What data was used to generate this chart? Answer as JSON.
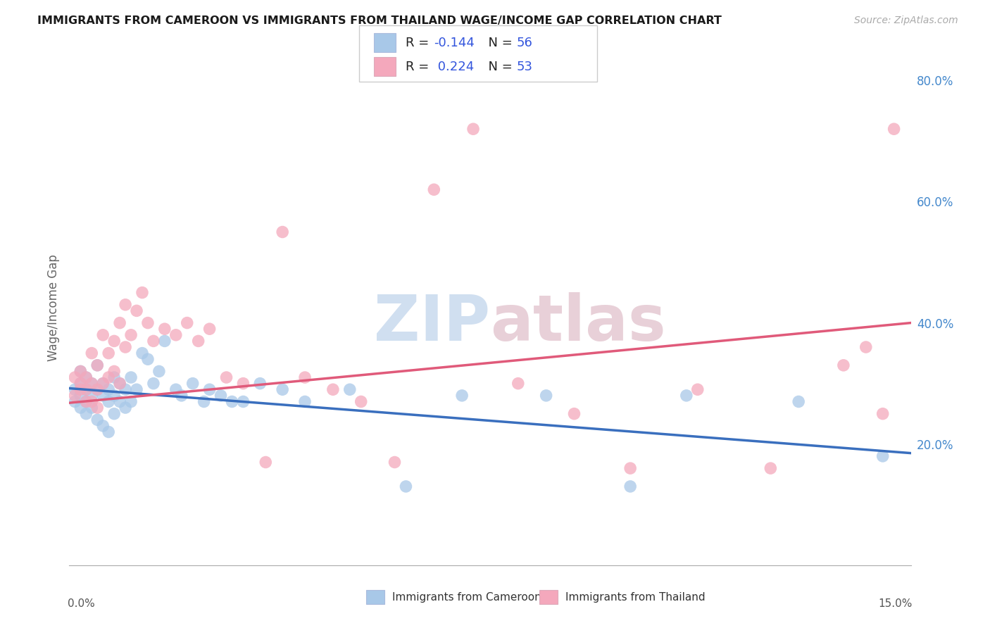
{
  "title": "IMMIGRANTS FROM CAMEROON VS IMMIGRANTS FROM THAILAND WAGE/INCOME GAP CORRELATION CHART",
  "source": "Source: ZipAtlas.com",
  "ylabel": "Wage/Income Gap",
  "cameroon_color": "#a8c8e8",
  "thailand_color": "#f4a8bc",
  "cameroon_line_color": "#3a6fbe",
  "thailand_line_color": "#e05a7a",
  "xlim": [
    0.0,
    0.15
  ],
  "ylim": [
    0.0,
    0.85
  ],
  "right_yticks": [
    0.2,
    0.4,
    0.6,
    0.8
  ],
  "right_yticklabels": [
    "20.0%",
    "40.0%",
    "60.0%",
    "80.0%"
  ],
  "watermark": "ZIPatlas",
  "cam_x": [
    0.001,
    0.001,
    0.002,
    0.002,
    0.002,
    0.002,
    0.003,
    0.003,
    0.003,
    0.003,
    0.004,
    0.004,
    0.004,
    0.005,
    0.005,
    0.005,
    0.006,
    0.006,
    0.006,
    0.007,
    0.007,
    0.007,
    0.008,
    0.008,
    0.008,
    0.009,
    0.009,
    0.01,
    0.01,
    0.011,
    0.011,
    0.012,
    0.013,
    0.014,
    0.015,
    0.016,
    0.017,
    0.019,
    0.02,
    0.022,
    0.024,
    0.025,
    0.027,
    0.029,
    0.031,
    0.034,
    0.038,
    0.042,
    0.05,
    0.06,
    0.07,
    0.085,
    0.1,
    0.11,
    0.13,
    0.145
  ],
  "cam_y": [
    0.29,
    0.27,
    0.32,
    0.3,
    0.28,
    0.26,
    0.31,
    0.29,
    0.27,
    0.25,
    0.3,
    0.28,
    0.26,
    0.33,
    0.29,
    0.24,
    0.3,
    0.28,
    0.23,
    0.29,
    0.27,
    0.22,
    0.28,
    0.31,
    0.25,
    0.3,
    0.27,
    0.29,
    0.26,
    0.31,
    0.27,
    0.29,
    0.35,
    0.34,
    0.3,
    0.32,
    0.37,
    0.29,
    0.28,
    0.3,
    0.27,
    0.29,
    0.28,
    0.27,
    0.27,
    0.3,
    0.29,
    0.27,
    0.29,
    0.13,
    0.28,
    0.28,
    0.13,
    0.28,
    0.27,
    0.18
  ],
  "thai_x": [
    0.001,
    0.001,
    0.002,
    0.002,
    0.002,
    0.003,
    0.003,
    0.003,
    0.004,
    0.004,
    0.004,
    0.005,
    0.005,
    0.005,
    0.006,
    0.006,
    0.007,
    0.007,
    0.008,
    0.008,
    0.009,
    0.009,
    0.01,
    0.01,
    0.011,
    0.012,
    0.013,
    0.014,
    0.015,
    0.017,
    0.019,
    0.021,
    0.023,
    0.025,
    0.028,
    0.031,
    0.035,
    0.038,
    0.042,
    0.047,
    0.052,
    0.058,
    0.065,
    0.072,
    0.08,
    0.09,
    0.1,
    0.112,
    0.125,
    0.138,
    0.142,
    0.145,
    0.147
  ],
  "thai_y": [
    0.28,
    0.31,
    0.3,
    0.32,
    0.29,
    0.31,
    0.29,
    0.27,
    0.3,
    0.35,
    0.27,
    0.33,
    0.29,
    0.26,
    0.3,
    0.38,
    0.31,
    0.35,
    0.32,
    0.37,
    0.3,
    0.4,
    0.43,
    0.36,
    0.38,
    0.42,
    0.45,
    0.4,
    0.37,
    0.39,
    0.38,
    0.4,
    0.37,
    0.39,
    0.31,
    0.3,
    0.17,
    0.55,
    0.31,
    0.29,
    0.27,
    0.17,
    0.62,
    0.72,
    0.3,
    0.25,
    0.16,
    0.29,
    0.16,
    0.33,
    0.36,
    0.25,
    0.72
  ]
}
